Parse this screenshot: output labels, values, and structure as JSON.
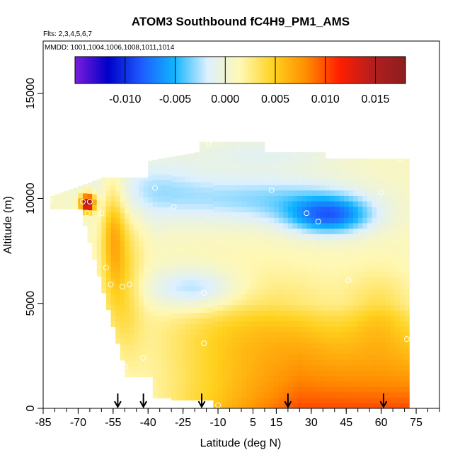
{
  "chart_data": {
    "type": "heatmap",
    "title": "ATOM3 Southbound fC4H9_PM1_AMS",
    "flights_text": "Flts: 2,3,4,5,6,7",
    "mmdd_text": "MMDD: 1001,1004,1006,1008,1011,1014",
    "xlabel": "Latitude (deg N)",
    "ylabel": "Altitude (m)",
    "xlim": [
      -85,
      85
    ],
    "ylim": [
      0,
      17500
    ],
    "x_ticks": [
      -85,
      -70,
      -55,
      -40,
      -25,
      -10,
      5,
      15,
      30,
      45,
      60,
      75
    ],
    "x_tick_labels": [
      "-85",
      "-70",
      "-55",
      "-40",
      "-25",
      "-10",
      "5",
      "15",
      "30",
      "45",
      "60",
      "75"
    ],
    "y_ticks": [
      0,
      5000,
      10000,
      15000
    ],
    "y_tick_labels": [
      "0",
      "5000",
      "10000",
      "15000"
    ],
    "colorbar": {
      "range": [
        -0.015,
        0.018
      ],
      "ticks": [
        -0.01,
        -0.005,
        0.0,
        0.005,
        0.01,
        0.015
      ],
      "tick_labels": [
        "-0.010",
        "-0.005",
        "0.000",
        "0.005",
        "0.010",
        "0.015"
      ],
      "colors": [
        "#7d1cdc",
        "#0000c8",
        "#1e5aff",
        "#10b4ff",
        "#dcf0ff",
        "#fff8b4",
        "#ffd21e",
        "#ff8c00",
        "#ff1e00",
        "#b41e1e",
        "#8c1e1e"
      ]
    },
    "flight_arrow_latitudes": [
      -53,
      -42,
      -17,
      20,
      61
    ],
    "sample_points": [
      {
        "lat": -82,
        "alt": 9900
      },
      {
        "lat": -68,
        "alt": 9850
      },
      {
        "lat": -65,
        "alt": 9850
      },
      {
        "lat": -66,
        "alt": 9300
      },
      {
        "lat": -60,
        "alt": 9300
      },
      {
        "lat": -37,
        "alt": 10500
      },
      {
        "lat": -29,
        "alt": 9600
      },
      {
        "lat": -14,
        "alt": 12600
      },
      {
        "lat": 13,
        "alt": 10400
      },
      {
        "lat": 60,
        "alt": 10300
      },
      {
        "lat": 68,
        "alt": 11900
      },
      {
        "lat": 28,
        "alt": 9300
      },
      {
        "lat": 33,
        "alt": 8900
      },
      {
        "lat": -58,
        "alt": 6700
      },
      {
        "lat": -56,
        "alt": 5900
      },
      {
        "lat": -51,
        "alt": 5800
      },
      {
        "lat": -48,
        "alt": 5900
      },
      {
        "lat": -16,
        "alt": 5500
      },
      {
        "lat": 46,
        "alt": 6100
      },
      {
        "lat": -55,
        "alt": 2800
      },
      {
        "lat": -50,
        "alt": 2000
      },
      {
        "lat": -42,
        "alt": 2400
      },
      {
        "lat": -16,
        "alt": 3100
      },
      {
        "lat": 71,
        "alt": 3300
      },
      {
        "lat": -10,
        "alt": 150
      }
    ]
  }
}
